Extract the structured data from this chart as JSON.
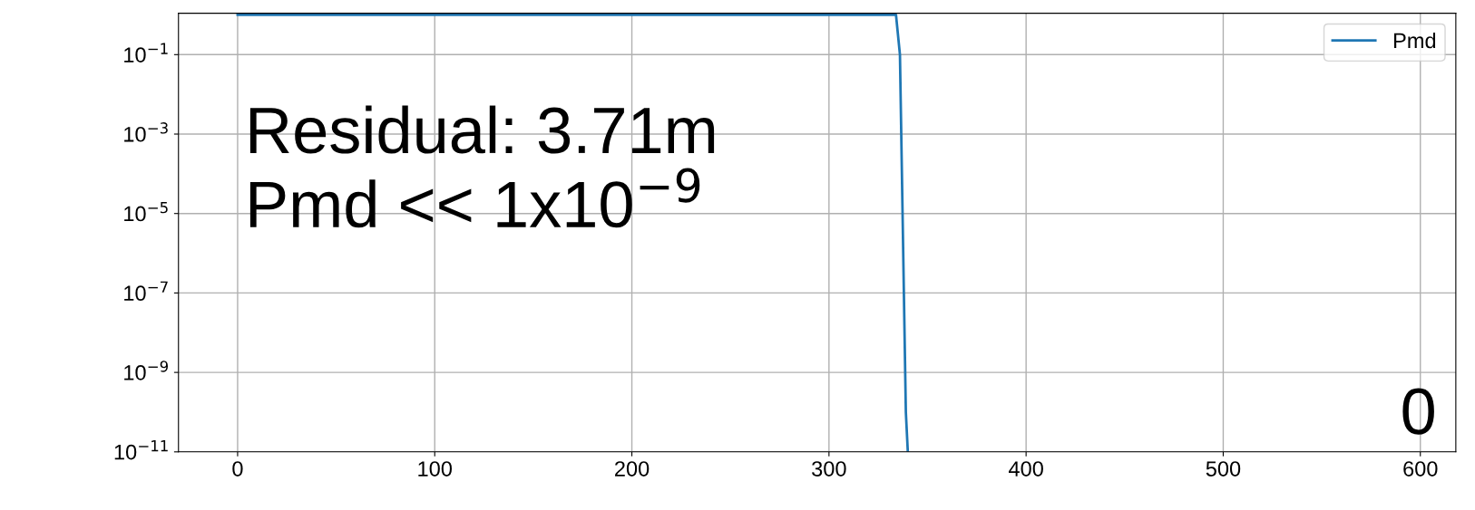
{
  "chart_data": {
    "type": "line",
    "series": [
      {
        "name": "Pmd",
        "color": "#1f77b4",
        "x": [
          0,
          334,
          336,
          337,
          338,
          339,
          340
        ],
        "values": [
          1,
          1,
          0.1,
          0.0001,
          1e-07,
          1e-10,
          1e-11
        ]
      }
    ],
    "log": "y",
    "xlim": [
      -30,
      618
    ],
    "xticks": [
      0,
      100,
      200,
      300,
      400,
      500,
      600
    ],
    "ylim": [
      1e-11,
      1.1
    ],
    "yticks": [
      {
        "value": 1e-11,
        "label": "10$^{−11}$"
      },
      {
        "value": 1e-09,
        "label": "10$^{−9}$"
      },
      {
        "value": 1e-07,
        "label": "10$^{−7}$"
      },
      {
        "value": 1e-05,
        "label": "10$^{−5}$"
      },
      {
        "value": 0.001,
        "label": "10$^{−3}$"
      },
      {
        "value": 0.1,
        "label": "10$^{−1}$"
      }
    ],
    "grid": true,
    "legend": "top right",
    "annotations": [
      "Residual: 3.71m",
      "Pmd << 1x10$^{−9}$",
      "0"
    ]
  }
}
